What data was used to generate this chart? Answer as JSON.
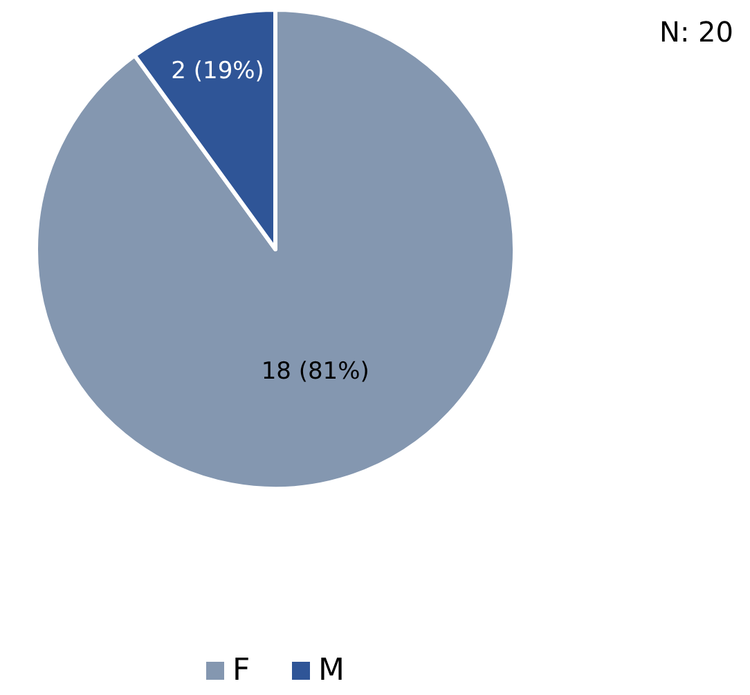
{
  "chart_data": {
    "type": "pie",
    "categories": [
      "F",
      "M"
    ],
    "values": [
      18,
      2
    ],
    "colors": [
      "#8497b0",
      "#2f5597"
    ],
    "value_labels": [
      "18 (81%)",
      "2 (19%)"
    ],
    "annotations": [
      "N: 20"
    ],
    "legend": "bottom"
  }
}
